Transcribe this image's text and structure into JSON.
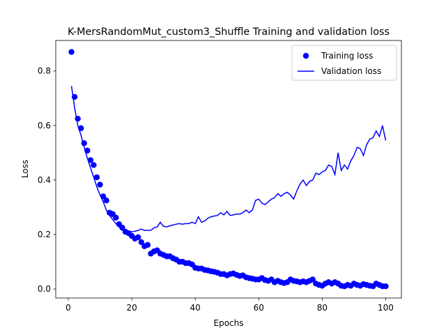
{
  "chart_data": {
    "type": "line",
    "title": "K-MersRandomMut_custom3_Shuffle Training and validation loss",
    "x_label": "Epochs",
    "y_label": "Loss",
    "x": [
      1,
      2,
      3,
      4,
      5,
      6,
      7,
      8,
      9,
      10,
      11,
      12,
      13,
      14,
      15,
      16,
      17,
      18,
      19,
      20,
      21,
      22,
      23,
      24,
      25,
      26,
      27,
      28,
      29,
      30,
      31,
      32,
      33,
      34,
      35,
      36,
      37,
      38,
      39,
      40,
      41,
      42,
      43,
      44,
      45,
      46,
      47,
      48,
      49,
      50,
      51,
      52,
      53,
      54,
      55,
      56,
      57,
      58,
      59,
      60,
      61,
      62,
      63,
      64,
      65,
      66,
      67,
      68,
      69,
      70,
      71,
      72,
      73,
      74,
      75,
      76,
      77,
      78,
      79,
      80,
      81,
      82,
      83,
      84,
      85,
      86,
      87,
      88,
      89,
      90,
      91,
      92,
      93,
      94,
      95,
      96,
      97,
      98,
      99,
      100
    ],
    "series": [
      {
        "name": "Training loss",
        "color": "#0000ff",
        "mode": "markers",
        "values": [
          0.87,
          0.705,
          0.625,
          0.59,
          0.535,
          0.508,
          0.473,
          0.455,
          0.41,
          0.383,
          0.34,
          0.325,
          0.28,
          0.275,
          0.262,
          0.238,
          0.225,
          0.21,
          0.205,
          0.195,
          0.185,
          0.19,
          0.172,
          0.157,
          0.162,
          0.13,
          0.138,
          0.142,
          0.13,
          0.125,
          0.12,
          0.12,
          0.113,
          0.108,
          0.1,
          0.1,
          0.095,
          0.095,
          0.09,
          0.078,
          0.075,
          0.075,
          0.07,
          0.068,
          0.065,
          0.063,
          0.06,
          0.055,
          0.055,
          0.05,
          0.055,
          0.057,
          0.052,
          0.048,
          0.05,
          0.043,
          0.04,
          0.038,
          0.035,
          0.035,
          0.04,
          0.033,
          0.03,
          0.035,
          0.025,
          0.03,
          0.025,
          0.022,
          0.025,
          0.035,
          0.03,
          0.028,
          0.025,
          0.028,
          0.025,
          0.03,
          0.035,
          0.02,
          0.015,
          0.012,
          0.02,
          0.025,
          0.02,
          0.025,
          0.02,
          0.012,
          0.01,
          0.015,
          0.012,
          0.02,
          0.015,
          0.012,
          0.018,
          0.015,
          0.012,
          0.01,
          0.02,
          0.015,
          0.01,
          0.01
        ]
      },
      {
        "name": "Validation loss",
        "color": "#0000ff",
        "mode": "line",
        "values": [
          0.745,
          0.665,
          0.6,
          0.565,
          0.52,
          0.48,
          0.445,
          0.41,
          0.375,
          0.345,
          0.32,
          0.29,
          0.27,
          0.255,
          0.24,
          0.228,
          0.22,
          0.215,
          0.212,
          0.21,
          0.212,
          0.215,
          0.22,
          0.215,
          0.215,
          0.215,
          0.225,
          0.228,
          0.245,
          0.23,
          0.228,
          0.232,
          0.235,
          0.238,
          0.24,
          0.238,
          0.24,
          0.24,
          0.245,
          0.24,
          0.265,
          0.245,
          0.25,
          0.26,
          0.265,
          0.268,
          0.27,
          0.28,
          0.272,
          0.285,
          0.27,
          0.272,
          0.275,
          0.275,
          0.28,
          0.29,
          0.28,
          0.29,
          0.325,
          0.33,
          0.315,
          0.31,
          0.32,
          0.33,
          0.335,
          0.35,
          0.34,
          0.35,
          0.355,
          0.345,
          0.33,
          0.36,
          0.385,
          0.4,
          0.38,
          0.395,
          0.4,
          0.425,
          0.42,
          0.43,
          0.435,
          0.455,
          0.45,
          0.42,
          0.5,
          0.435,
          0.455,
          0.44,
          0.47,
          0.49,
          0.52,
          0.515,
          0.49,
          0.53,
          0.55,
          0.555,
          0.58,
          0.56,
          0.6,
          0.545
        ]
      }
    ],
    "xlim": [
      -3.95,
      104.95
    ],
    "ylim": [
      -0.033,
      0.912
    ],
    "xticks": [
      0,
      20,
      40,
      60,
      80,
      100
    ],
    "yticks": [
      {
        "value": 0,
        "label": "0.0"
      },
      0.2,
      0.4,
      0.6,
      0.8
    ],
    "legend": "upper right"
  }
}
